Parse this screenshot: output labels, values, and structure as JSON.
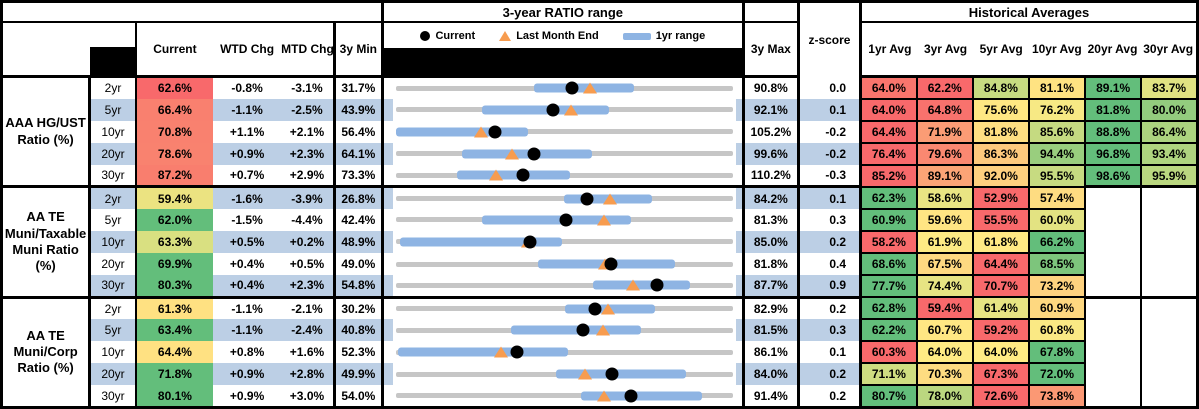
{
  "header": {
    "chart_title": "3-year RATIO range",
    "hist_avg_title": "Historical Averages",
    "col_current": "Current",
    "col_wtd": "WTD Chg",
    "col_mtd": "MTD Chg",
    "col_min": "3y Min",
    "col_max": "3y Max",
    "col_z": "z-score",
    "avg_cols": [
      "1yr Avg",
      "3yr Avg",
      "5yr Avg",
      "10yr Avg",
      "20yr Avg",
      "30yr Avg"
    ],
    "legend": {
      "current": "Current",
      "last_month": "Last Month End",
      "range": "1yr range"
    }
  },
  "colors": {
    "band": "#BCCFE5",
    "scale_red": "#F8696B",
    "scale_yellow": "#FFEB84",
    "scale_green": "#63BE7B",
    "bar_blue": "#8EB4E3",
    "track_gray": "#C6C6C6",
    "triangle_orange": "#F79C4F",
    "dot_black": "#000000",
    "black_band": "#000000"
  },
  "chart_data": {
    "type": "table",
    "title": "3-year RATIO range",
    "legend": [
      "Current",
      "Last Month End",
      "1yr range"
    ],
    "columns": [
      "Current",
      "WTD Chg",
      "MTD Chg",
      "3y Min",
      "3y Max",
      "z-score",
      "1yr Avg",
      "3yr Avg",
      "5yr Avg",
      "10yr Avg",
      "20yr Avg",
      "30yr Avg"
    ],
    "range_plot_note": "dot = Current, triangle = Last Month End, blue bar = 1yr range, axis spans 3y Min to 3y Max per row",
    "groups": [
      {
        "name": "AAA HG/UST Ratio (%)",
        "tenors": [
          "2yr",
          "5yr",
          "10yr",
          "20yr",
          "30yr"
        ],
        "current": [
          62.6,
          66.4,
          70.8,
          78.6,
          87.2
        ],
        "current_colors": [
          "#F8696B",
          "#F9806F",
          "#F9816F",
          "#F9826F",
          "#F97E6E"
        ],
        "wtd_chg": [
          -0.8,
          -1.1,
          1.1,
          0.9,
          0.7
        ],
        "mtd_chg": [
          -3.1,
          -2.5,
          2.1,
          2.3,
          2.9
        ],
        "min_3y": [
          31.7,
          43.9,
          56.4,
          64.1,
          73.3
        ],
        "max_3y": [
          90.8,
          92.1,
          105.2,
          99.6,
          110.2
        ],
        "z_score": [
          0.0,
          0.1,
          -0.2,
          -0.2,
          -0.3
        ],
        "last_month_end": [
          65.7,
          68.9,
          68.7,
          76.3,
          84.3
        ],
        "range_1yr": [
          [
            56.0,
            73.4
          ],
          [
            56.2,
            74.4
          ],
          [
            56.4,
            75.6
          ],
          [
            71.1,
            84.8
          ],
          [
            80.0,
            92.4
          ]
        ],
        "averages": [
          [
            64.0,
            62.2,
            84.8,
            81.1,
            89.1,
            83.7
          ],
          [
            64.0,
            64.8,
            75.6,
            76.2,
            81.8,
            80.0
          ],
          [
            64.4,
            71.9,
            81.8,
            85.6,
            88.8,
            86.4
          ],
          [
            76.4,
            79.6,
            86.3,
            94.4,
            96.8,
            93.4
          ],
          [
            85.2,
            89.1,
            92.0,
            95.5,
            98.6,
            95.9
          ]
        ]
      },
      {
        "name": "AA TE Muni/Taxable Muni Ratio (%)",
        "tenors": [
          "2yr",
          "5yr",
          "10yr",
          "20yr",
          "30yr"
        ],
        "current": [
          59.4,
          62.0,
          63.3,
          69.9,
          80.3
        ],
        "current_colors": [
          "#EBE381",
          "#63BE7B",
          "#D9E081",
          "#63BE7B",
          "#63BE7B"
        ],
        "wtd_chg": [
          -1.6,
          -1.5,
          0.5,
          0.4,
          0.4
        ],
        "mtd_chg": [
          -3.9,
          -4.4,
          0.2,
          0.5,
          2.3
        ],
        "min_3y": [
          26.8,
          42.4,
          48.9,
          49.0,
          54.8
        ],
        "max_3y": [
          84.2,
          81.3,
          85.0,
          81.8,
          87.7
        ],
        "z_score": [
          0.1,
          0.3,
          0.2,
          0.4,
          0.9
        ],
        "last_month_end": [
          63.3,
          66.4,
          63.1,
          69.4,
          78.0
        ],
        "range_1yr": [
          [
            55.5,
            70.5
          ],
          [
            52.3,
            69.6
          ],
          [
            49.3,
            66.7
          ],
          [
            62.8,
            76.2
          ],
          [
            74.0,
            83.5
          ]
        ],
        "averages": [
          [
            62.3,
            58.6,
            52.9,
            57.4,
            null,
            null
          ],
          [
            60.9,
            59.6,
            55.5,
            60.0,
            null,
            null
          ],
          [
            58.2,
            61.9,
            61.8,
            66.2,
            null,
            null
          ],
          [
            68.6,
            67.5,
            64.4,
            68.5,
            null,
            null
          ],
          [
            77.7,
            74.4,
            70.7,
            73.2,
            null,
            null
          ]
        ]
      },
      {
        "name": "AA TE Muni/Corp Ratio (%)",
        "tenors": [
          "2yr",
          "5yr",
          "10yr",
          "20yr",
          "30yr"
        ],
        "current": [
          61.3,
          63.4,
          64.4,
          71.8,
          80.1
        ],
        "current_colors": [
          "#FFE182",
          "#63BE7B",
          "#FFE182",
          "#63BE7B",
          "#63BE7B"
        ],
        "wtd_chg": [
          -1.1,
          -1.1,
          0.8,
          0.9,
          0.9
        ],
        "mtd_chg": [
          -2.1,
          -2.4,
          1.6,
          2.8,
          3.0
        ],
        "min_3y": [
          30.2,
          40.8,
          52.3,
          49.9,
          54.0
        ],
        "max_3y": [
          82.9,
          81.5,
          86.1,
          84.0,
          91.4
        ],
        "z_score": [
          0.2,
          0.3,
          0.1,
          0.2,
          0.2
        ],
        "last_month_end": [
          63.4,
          65.8,
          62.8,
          69.0,
          77.1
        ],
        "range_1yr": [
          [
            56.6,
            70.7
          ],
          [
            54.7,
            70.4
          ],
          [
            52.5,
            69.6
          ],
          [
            66.1,
            79.3
          ],
          [
            74.6,
            88.0
          ]
        ],
        "averages": [
          [
            62.8,
            59.4,
            61.4,
            60.9,
            null,
            null
          ],
          [
            62.2,
            60.7,
            59.2,
            60.8,
            null,
            null
          ],
          [
            60.3,
            64.0,
            64.0,
            67.8,
            null,
            null
          ],
          [
            71.1,
            70.3,
            67.3,
            72.0,
            null,
            null
          ],
          [
            80.7,
            78.0,
            72.6,
            73.8,
            null,
            null
          ]
        ]
      }
    ]
  }
}
